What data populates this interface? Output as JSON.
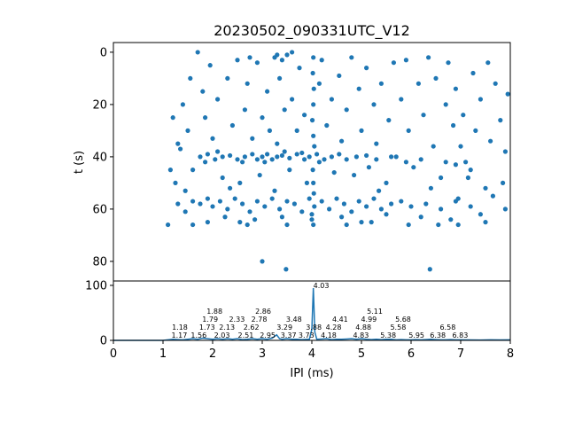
{
  "chart_data": [
    {
      "type": "scatter",
      "title": "20230502_090331UTC_V12",
      "xlabel": "",
      "ylabel": "t (s)",
      "xlim": [
        0,
        8
      ],
      "ylim": [
        87.5,
        -3.7
      ],
      "y_inverted": true,
      "yticks": [
        0,
        20,
        40,
        60,
        80
      ],
      "grid": false,
      "color": "#1f77b4",
      "points": [
        [
          1.75,
          40
        ],
        [
          1.9,
          39
        ],
        [
          2.05,
          41
        ],
        [
          2.2,
          40
        ],
        [
          2.35,
          39.5
        ],
        [
          2.5,
          41
        ],
        [
          2.65,
          40
        ],
        [
          2.8,
          39
        ],
        [
          2.9,
          41
        ],
        [
          3.0,
          40
        ],
        [
          3.1,
          39
        ],
        [
          3.2,
          41
        ],
        [
          3.3,
          40
        ],
        [
          3.4,
          39.5
        ],
        [
          3.55,
          40.5
        ],
        [
          3.7,
          39
        ],
        [
          3.85,
          41
        ],
        [
          3.95,
          40
        ],
        [
          4.1,
          39
        ],
        [
          4.25,
          41
        ],
        [
          4.4,
          40
        ],
        [
          4.55,
          39
        ],
        [
          4.7,
          41
        ],
        [
          4.9,
          40
        ],
        [
          5.1,
          39.5
        ],
        [
          5.3,
          41
        ],
        [
          5.6,
          40
        ],
        [
          5.9,
          42
        ],
        [
          6.2,
          41
        ],
        [
          6.7,
          42
        ],
        [
          6.9,
          43
        ],
        [
          7.1,
          42
        ],
        [
          2.1,
          38
        ],
        [
          2.6,
          42
        ],
        [
          3.05,
          42
        ],
        [
          3.45,
          38
        ],
        [
          3.8,
          38.5
        ],
        [
          4.15,
          42
        ],
        [
          1.85,
          42
        ],
        [
          1.6,
          57
        ],
        [
          1.75,
          58
        ],
        [
          1.9,
          56
        ],
        [
          2.0,
          59
        ],
        [
          2.15,
          57
        ],
        [
          2.3,
          60
        ],
        [
          2.45,
          56
        ],
        [
          2.6,
          58
        ],
        [
          2.75,
          61
        ],
        [
          2.9,
          57
        ],
        [
          3.05,
          59
        ],
        [
          3.2,
          56
        ],
        [
          3.35,
          60
        ],
        [
          3.5,
          57
        ],
        [
          3.65,
          58
        ],
        [
          3.8,
          61
        ],
        [
          3.95,
          56
        ],
        [
          4.05,
          59
        ],
        [
          4.2,
          57
        ],
        [
          4.35,
          60
        ],
        [
          4.5,
          56
        ],
        [
          4.65,
          58
        ],
        [
          4.8,
          61
        ],
        [
          4.95,
          57
        ],
        [
          5.1,
          59
        ],
        [
          5.25,
          56
        ],
        [
          5.4,
          60
        ],
        [
          5.6,
          58
        ],
        [
          5.8,
          57
        ],
        [
          6.0,
          59
        ],
        [
          6.3,
          58
        ],
        [
          6.6,
          60
        ],
        [
          6.9,
          57
        ],
        [
          7.2,
          59
        ],
        [
          1.3,
          58
        ],
        [
          1.45,
          61
        ],
        [
          2.25,
          63
        ],
        [
          2.55,
          65
        ],
        [
          2.85,
          64
        ],
        [
          3.4,
          63
        ],
        [
          4.0,
          64
        ],
        [
          4.6,
          63
        ],
        [
          5.0,
          65
        ],
        [
          5.5,
          62
        ],
        [
          6.2,
          63
        ],
        [
          6.8,
          64
        ],
        [
          7.4,
          62
        ],
        [
          7.9,
          60
        ],
        [
          1.1,
          66
        ],
        [
          1.6,
          66
        ],
        [
          1.9,
          65
        ],
        [
          2.7,
          66
        ],
        [
          3.5,
          66
        ],
        [
          4.7,
          66
        ],
        [
          5.2,
          65
        ],
        [
          5.95,
          66
        ],
        [
          6.55,
          66
        ],
        [
          6.95,
          66
        ],
        [
          7.5,
          65
        ],
        [
          4.03,
          2
        ],
        [
          4.02,
          8
        ],
        [
          4.04,
          14
        ],
        [
          4.03,
          20
        ],
        [
          4.01,
          26
        ],
        [
          4.03,
          32
        ],
        [
          4.05,
          36
        ],
        [
          4.02,
          45
        ],
        [
          4.03,
          50
        ],
        [
          4.04,
          54
        ],
        [
          4.0,
          62
        ],
        [
          4.03,
          66
        ],
        [
          1.2,
          25
        ],
        [
          1.3,
          35
        ],
        [
          1.15,
          45
        ],
        [
          1.25,
          50
        ],
        [
          1.4,
          20
        ],
        [
          1.5,
          30
        ],
        [
          1.55,
          10
        ],
        [
          1.6,
          45
        ],
        [
          1.7,
          0
        ],
        [
          1.8,
          15
        ],
        [
          1.85,
          25
        ],
        [
          1.95,
          5
        ],
        [
          2.0,
          33
        ],
        [
          2.1,
          18
        ],
        [
          2.2,
          48
        ],
        [
          2.3,
          10
        ],
        [
          2.4,
          28
        ],
        [
          2.5,
          3
        ],
        [
          2.55,
          50
        ],
        [
          2.65,
          22
        ],
        [
          2.7,
          12
        ],
        [
          2.8,
          33
        ],
        [
          2.9,
          4
        ],
        [
          2.95,
          47
        ],
        [
          3.0,
          25
        ],
        [
          3.1,
          15
        ],
        [
          3.15,
          30
        ],
        [
          3.25,
          2
        ],
        [
          3.3,
          35
        ],
        [
          3.35,
          10
        ],
        [
          3.45,
          22
        ],
        [
          3.5,
          1
        ],
        [
          3.55,
          45
        ],
        [
          3.6,
          18
        ],
        [
          3.7,
          30
        ],
        [
          3.75,
          6
        ],
        [
          3.85,
          24
        ],
        [
          3.9,
          50
        ],
        [
          4.15,
          12
        ],
        [
          4.2,
          3
        ],
        [
          4.3,
          28
        ],
        [
          4.4,
          18
        ],
        [
          4.45,
          46
        ],
        [
          4.55,
          9
        ],
        [
          4.6,
          34
        ],
        [
          4.7,
          22
        ],
        [
          4.8,
          2
        ],
        [
          4.85,
          47
        ],
        [
          4.95,
          14
        ],
        [
          5.0,
          30
        ],
        [
          5.1,
          6
        ],
        [
          5.15,
          44
        ],
        [
          5.25,
          20
        ],
        [
          5.3,
          35
        ],
        [
          5.4,
          12
        ],
        [
          5.5,
          50
        ],
        [
          5.55,
          26
        ],
        [
          5.65,
          4
        ],
        [
          5.7,
          40
        ],
        [
          5.8,
          18
        ],
        [
          5.9,
          3
        ],
        [
          5.95,
          30
        ],
        [
          6.05,
          44
        ],
        [
          6.15,
          12
        ],
        [
          6.25,
          24
        ],
        [
          6.35,
          2
        ],
        [
          6.45,
          36
        ],
        [
          6.5,
          10
        ],
        [
          6.6,
          48
        ],
        [
          6.7,
          20
        ],
        [
          6.75,
          4
        ],
        [
          6.85,
          28
        ],
        [
          6.9,
          14
        ],
        [
          7.0,
          36
        ],
        [
          7.05,
          24
        ],
        [
          7.15,
          48
        ],
        [
          7.25,
          8
        ],
        [
          7.3,
          30
        ],
        [
          7.4,
          18
        ],
        [
          7.5,
          52
        ],
        [
          7.6,
          34
        ],
        [
          7.7,
          12
        ],
        [
          7.8,
          26
        ],
        [
          7.85,
          50
        ],
        [
          7.95,
          16
        ],
        [
          7.9,
          38
        ],
        [
          7.55,
          4
        ],
        [
          7.2,
          45
        ],
        [
          6.95,
          56
        ],
        [
          1.35,
          37
        ],
        [
          1.45,
          53
        ],
        [
          2.35,
          52
        ],
        [
          3.25,
          53
        ],
        [
          5.35,
          53
        ],
        [
          6.4,
          52
        ],
        [
          7.65,
          55
        ],
        [
          3.0,
          80
        ],
        [
          3.48,
          83
        ],
        [
          6.38,
          83
        ],
        [
          3.3,
          1
        ],
        [
          3.4,
          3
        ],
        [
          2.75,
          2
        ],
        [
          3.6,
          0
        ]
      ]
    },
    {
      "type": "line",
      "xlabel": "IPI (ms)",
      "ylabel": "",
      "xlim": [
        0,
        8
      ],
      "ylim": [
        0,
        108
      ],
      "xticks": [
        0,
        1,
        2,
        3,
        4,
        5,
        6,
        7,
        8
      ],
      "yticks": [
        0,
        100
      ],
      "grid": false,
      "color": "#1f77b4",
      "points": [
        [
          0,
          0
        ],
        [
          1.0,
          0
        ],
        [
          1.1,
          1
        ],
        [
          1.2,
          2
        ],
        [
          1.3,
          1.5
        ],
        [
          1.4,
          1
        ],
        [
          1.5,
          2
        ],
        [
          1.6,
          3
        ],
        [
          1.7,
          2
        ],
        [
          1.8,
          4
        ],
        [
          1.9,
          3
        ],
        [
          2.0,
          2
        ],
        [
          2.1,
          3
        ],
        [
          2.2,
          2
        ],
        [
          2.3,
          3
        ],
        [
          2.4,
          2
        ],
        [
          2.5,
          3
        ],
        [
          2.6,
          1.5
        ],
        [
          2.7,
          2
        ],
        [
          2.8,
          3
        ],
        [
          2.9,
          2
        ],
        [
          3.0,
          3
        ],
        [
          3.1,
          2
        ],
        [
          3.2,
          4
        ],
        [
          3.29,
          10
        ],
        [
          3.35,
          3
        ],
        [
          3.4,
          2
        ],
        [
          3.5,
          3
        ],
        [
          3.6,
          2
        ],
        [
          3.7,
          2
        ],
        [
          3.8,
          1.5
        ],
        [
          3.95,
          2
        ],
        [
          4.0,
          20
        ],
        [
          4.03,
          95
        ],
        [
          4.06,
          15
        ],
        [
          4.1,
          2
        ],
        [
          4.2,
          2.5
        ],
        [
          4.3,
          3
        ],
        [
          4.4,
          1.5
        ],
        [
          4.5,
          2
        ],
        [
          4.6,
          2
        ],
        [
          4.7,
          2.5
        ],
        [
          4.8,
          3
        ],
        [
          4.9,
          2
        ],
        [
          5.0,
          3
        ],
        [
          5.1,
          2
        ],
        [
          5.2,
          1.5
        ],
        [
          5.3,
          2
        ],
        [
          5.4,
          1.5
        ],
        [
          5.5,
          2
        ],
        [
          5.6,
          2
        ],
        [
          5.7,
          1
        ],
        [
          5.8,
          1.5
        ],
        [
          5.9,
          1
        ],
        [
          6.0,
          1
        ],
        [
          6.1,
          1.5
        ],
        [
          6.2,
          1
        ],
        [
          6.3,
          1.5
        ],
        [
          6.4,
          2
        ],
        [
          6.5,
          1.5
        ],
        [
          6.6,
          1
        ],
        [
          6.7,
          1
        ],
        [
          6.8,
          1.5
        ],
        [
          6.9,
          1
        ],
        [
          7.0,
          1
        ],
        [
          7.2,
          0.8
        ],
        [
          7.4,
          0.7
        ],
        [
          7.6,
          1
        ],
        [
          7.8,
          0.8
        ],
        [
          8.0,
          1
        ]
      ],
      "annotations": [
        {
          "x": 1.17,
          "y": 2,
          "text": "1.17"
        },
        {
          "x": 1.18,
          "y": 2,
          "text": "1.18"
        },
        {
          "x": 1.56,
          "y": 3,
          "text": "1.56"
        },
        {
          "x": 1.73,
          "y": 5,
          "text": "1.73"
        },
        {
          "x": 1.79,
          "y": 4,
          "text": "1.79"
        },
        {
          "x": 1.88,
          "y": 3,
          "text": "1.88"
        },
        {
          "x": 2.03,
          "y": 2,
          "text": "2.03"
        },
        {
          "x": 2.13,
          "y": 2,
          "text": "2.13"
        },
        {
          "x": 2.33,
          "y": 3,
          "text": "2.33"
        },
        {
          "x": 2.51,
          "y": 3,
          "text": "2.51"
        },
        {
          "x": 2.62,
          "y": 3,
          "text": "2.62"
        },
        {
          "x": 2.78,
          "y": 3,
          "text": "2.78"
        },
        {
          "x": 2.86,
          "y": 3,
          "text": "2.86"
        },
        {
          "x": 2.95,
          "y": 3,
          "text": "2.95"
        },
        {
          "x": 3.29,
          "y": 10,
          "text": "3.29"
        },
        {
          "x": 3.37,
          "y": 3,
          "text": "3.37"
        },
        {
          "x": 3.48,
          "y": 3,
          "text": "3.48"
        },
        {
          "x": 3.73,
          "y": 2,
          "text": "3.73"
        },
        {
          "x": 3.88,
          "y": 2,
          "text": "3.88"
        },
        {
          "x": 4.03,
          "y": 95,
          "text": "4.03"
        },
        {
          "x": 4.18,
          "y": 3,
          "text": "4.18"
        },
        {
          "x": 4.28,
          "y": 1,
          "text": "4.28"
        },
        {
          "x": 4.41,
          "y": 3,
          "text": "4.41"
        },
        {
          "x": 4.83,
          "y": 3,
          "text": "4.83"
        },
        {
          "x": 4.88,
          "y": 3,
          "text": "4.88"
        },
        {
          "x": 4.99,
          "y": 3,
          "text": "4.99"
        },
        {
          "x": 5.11,
          "y": 2,
          "text": "5.11"
        },
        {
          "x": 5.38,
          "y": 2,
          "text": "5.38"
        },
        {
          "x": 5.58,
          "y": 2,
          "text": "5.58"
        },
        {
          "x": 5.68,
          "y": 3,
          "text": "5.68"
        },
        {
          "x": 5.95,
          "y": 1.5,
          "text": "5.95"
        },
        {
          "x": 6.38,
          "y": 2,
          "text": "6.38"
        },
        {
          "x": 6.58,
          "y": 1.5,
          "text": "6.58"
        },
        {
          "x": 6.83,
          "y": 1.5,
          "text": "6.83"
        }
      ]
    }
  ]
}
